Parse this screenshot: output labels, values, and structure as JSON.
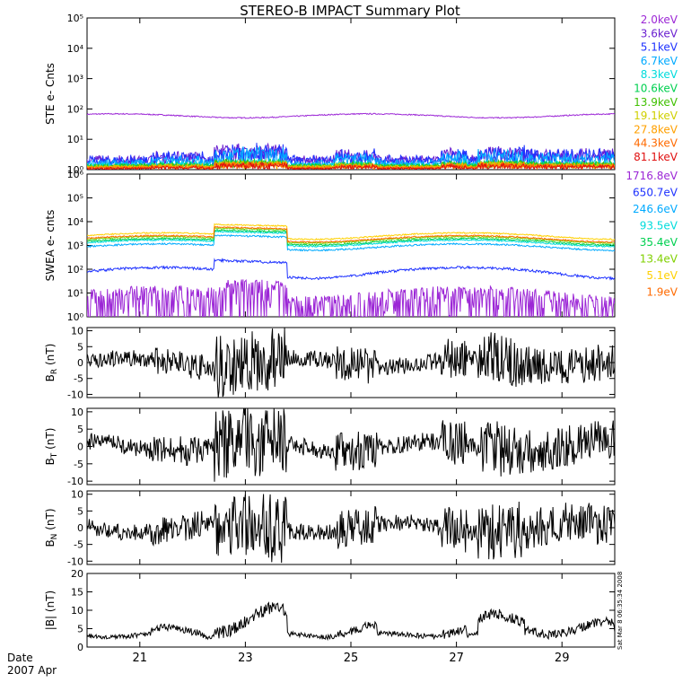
{
  "title": "STEREO-B IMPACT Summary Plot",
  "date_label": "Date",
  "date_sub": "2007 Apr",
  "stamp": "Sat Mar 8 06:35:34 2008",
  "chart_data": [
    {
      "id": "ste",
      "type": "line",
      "ylabel": "STE e- Cnts",
      "yscale": "log",
      "ylim": [
        1,
        100000
      ],
      "yticks": [
        "10⁰",
        "10¹",
        "10²",
        "10³",
        "10⁴",
        "10⁵"
      ],
      "series": [
        {
          "name": "2.0keV",
          "color": "#9c27d6",
          "base": 60,
          "noise": 0.04
        },
        {
          "name": "3.6keV",
          "color": "#6a1fd0",
          "base": 1.8,
          "noise": 0.25
        },
        {
          "name": "5.1keV",
          "color": "#1e32ff",
          "base": 1.7,
          "noise": 0.35
        },
        {
          "name": "6.7keV",
          "color": "#00aaff",
          "base": 1.4,
          "noise": 0.2
        },
        {
          "name": "8.3keV",
          "color": "#00dcdc",
          "base": 1.35,
          "noise": 0.15
        },
        {
          "name": "10.6keV",
          "color": "#00d050",
          "base": 1.3,
          "noise": 0.15
        },
        {
          "name": "13.9keV",
          "color": "#40c000",
          "base": 1.25,
          "noise": 0.12
        },
        {
          "name": "19.1keV",
          "color": "#d0d000",
          "base": 1.2,
          "noise": 0.1
        },
        {
          "name": "27.8keV",
          "color": "#ffa000",
          "base": 1.15,
          "noise": 0.1
        },
        {
          "name": "44.3keV",
          "color": "#ff6a00",
          "base": 1.1,
          "noise": 0.08
        },
        {
          "name": "81.1keV",
          "color": "#e01010",
          "base": 1.05,
          "noise": 0.06
        }
      ]
    },
    {
      "id": "swea",
      "type": "line",
      "ylabel": "SWEA e- cnts",
      "yscale": "log",
      "ylim": [
        1,
        1000000
      ],
      "yticks": [
        "10⁰",
        "10¹",
        "10²",
        "10³",
        "10⁴",
        "10⁵",
        "10⁶"
      ],
      "series": [
        {
          "name": "1716.8eV",
          "color": "#9c27d6",
          "base": 5,
          "noise": 0.6
        },
        {
          "name": "650.7eV",
          "color": "#1e32ff",
          "base": 80,
          "noise": 0.12
        },
        {
          "name": "246.6eV",
          "color": "#00aaff",
          "base": 900,
          "noise": 0.08
        },
        {
          "name": "93.5eV",
          "color": "#00dcdc",
          "base": 1300,
          "noise": 0.07
        },
        {
          "name": "35.4eV",
          "color": "#00d050",
          "base": 1500,
          "noise": 0.07
        },
        {
          "name": "13.4eV",
          "color": "#80d000",
          "base": 1800,
          "noise": 0.06
        },
        {
          "name": "5.1eV",
          "color": "#ffd000",
          "base": 2600,
          "noise": 0.06
        },
        {
          "name": "1.9eV",
          "color": "#ff6a00",
          "base": 2000,
          "noise": 0.06
        }
      ]
    },
    {
      "id": "br",
      "type": "line",
      "ylabel": "B",
      "ysub": "R",
      "yunit": "(nT)",
      "ylim": [
        -11,
        11
      ],
      "yticks": [
        -10,
        -5,
        0,
        5,
        10
      ],
      "series": [
        {
          "name": "BR",
          "color": "#000000"
        }
      ]
    },
    {
      "id": "bt",
      "type": "line",
      "ylabel": "B",
      "ysub": "T",
      "yunit": "(nT)",
      "ylim": [
        -11,
        11
      ],
      "yticks": [
        -10,
        -5,
        0,
        5,
        10
      ],
      "series": [
        {
          "name": "BT",
          "color": "#000000"
        }
      ]
    },
    {
      "id": "bn",
      "type": "line",
      "ylabel": "B",
      "ysub": "N",
      "yunit": "(nT)",
      "ylim": [
        -11,
        11
      ],
      "yticks": [
        -10,
        -5,
        0,
        5,
        10
      ],
      "series": [
        {
          "name": "BN",
          "color": "#000000"
        }
      ]
    },
    {
      "id": "bmag",
      "type": "line",
      "ylabel": "|B| (nT)",
      "ylim": [
        0,
        20
      ],
      "yticks": [
        0,
        5,
        10,
        15,
        20
      ],
      "series": [
        {
          "name": "|B|",
          "color": "#000000"
        }
      ]
    }
  ],
  "x_axis": {
    "xlim": [
      20.0,
      30.0
    ],
    "ticks": [
      21,
      23,
      25,
      27,
      29
    ],
    "tick_labels": [
      "21",
      "23",
      "25",
      "27",
      "29"
    ]
  }
}
